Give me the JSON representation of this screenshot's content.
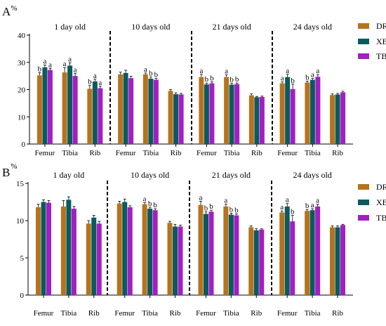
{
  "colors": {
    "DR": "#b5731d",
    "XB": "#0a5a5f",
    "TB": "#a21fc2"
  },
  "chart_data": [
    {
      "type": "bar",
      "panel": "A",
      "ylabel": "%",
      "ylim": [
        0,
        40
      ],
      "yticks": [
        0,
        10,
        20,
        30,
        40
      ],
      "legend_placement": "top-right",
      "legend": [
        "DR",
        "XB",
        "TB"
      ],
      "groups": [
        {
          "title": "1 day old",
          "categories": [
            "Femur",
            "Tibia",
            "Rib"
          ],
          "series": [
            {
              "name": "DR",
              "values": [
                25.2,
                26.3,
                20.3
              ],
              "errors": [
                1.0,
                1.8,
                1.2
              ],
              "letters": [
                "b",
                "a",
                "b"
              ]
            },
            {
              "name": "XB",
              "values": [
                28.2,
                28.8,
                23.0
              ],
              "errors": [
                0.8,
                1.0,
                0.8
              ],
              "letters": [
                "a",
                "a",
                "a"
              ]
            },
            {
              "name": "TB",
              "values": [
                27.2,
                25.0,
                20.5
              ],
              "errors": [
                0.6,
                1.0,
                0.7
              ],
              "letters": [
                "a",
                "a",
                "a"
              ]
            }
          ]
        },
        {
          "title": "10  days old",
          "categories": [
            "Femur",
            "Tibia",
            "Rib"
          ],
          "series": [
            {
              "name": "DR",
              "values": [
                25.6,
                25.6,
                19.5
              ],
              "errors": [
                0.8,
                0.5,
                0.5
              ],
              "letters": [
                "",
                "a",
                ""
              ]
            },
            {
              "name": "XB",
              "values": [
                26.1,
                24.0,
                18.3
              ],
              "errors": [
                1.0,
                0.6,
                0.5
              ],
              "letters": [
                "",
                "b",
                ""
              ]
            },
            {
              "name": "TB",
              "values": [
                24.2,
                23.6,
                18.2
              ],
              "errors": [
                0.7,
                0.5,
                0.4
              ],
              "letters": [
                "",
                "b",
                ""
              ]
            }
          ]
        },
        {
          "title": "21  days old",
          "categories": [
            "Femur",
            "Tibia",
            "Rib"
          ],
          "series": [
            {
              "name": "DR",
              "values": [
                24.6,
                24.6,
                17.9
              ],
              "errors": [
                1.0,
                0.8,
                0.5
              ],
              "letters": [
                "a",
                "a",
                ""
              ]
            },
            {
              "name": "XB",
              "values": [
                21.9,
                21.8,
                17.2
              ],
              "errors": [
                0.5,
                0.5,
                0.3
              ],
              "letters": [
                "b",
                "b",
                ""
              ]
            },
            {
              "name": "TB",
              "values": [
                22.3,
                22.0,
                17.3
              ],
              "errors": [
                0.5,
                0.4,
                0.3
              ],
              "letters": [
                "b",
                "b",
                ""
              ]
            }
          ]
        },
        {
          "title": "24  days old",
          "categories": [
            "Femur",
            "Tibia",
            "Rib"
          ],
          "series": [
            {
              "name": "DR",
              "values": [
                22.3,
                22.6,
                18.0
              ],
              "errors": [
                0.5,
                0.5,
                0.4
              ],
              "letters": [
                "a",
                "b",
                ""
              ]
            },
            {
              "name": "XB",
              "values": [
                24.6,
                23.6,
                18.2
              ],
              "errors": [
                1.0,
                0.5,
                0.4
              ],
              "letters": [
                "a",
                "a",
                ""
              ]
            },
            {
              "name": "TB",
              "values": [
                20.2,
                24.7,
                19.0
              ],
              "errors": [
                1.8,
                0.8,
                0.4
              ],
              "letters": [
                "b",
                "a",
                ""
              ]
            }
          ]
        }
      ]
    },
    {
      "type": "bar",
      "panel": "B",
      "ylabel": "%",
      "ylim": [
        0,
        15
      ],
      "yticks": [
        0,
        5,
        10,
        15
      ],
      "legend_placement": "top-right",
      "legend": [
        "DR",
        "XB",
        "TB"
      ],
      "groups": [
        {
          "title": "1 day old",
          "categories": [
            "Femur",
            "Tibia",
            "Rib"
          ],
          "series": [
            {
              "name": "DR",
              "values": [
                11.8,
                11.9,
                9.6
              ],
              "errors": [
                0.4,
                0.8,
                0.4
              ],
              "letters": [
                "",
                "",
                ""
              ]
            },
            {
              "name": "XB",
              "values": [
                12.5,
                12.8,
                10.4
              ],
              "errors": [
                0.3,
                0.4,
                0.3
              ],
              "letters": [
                "",
                "",
                ""
              ]
            },
            {
              "name": "TB",
              "values": [
                12.4,
                11.6,
                9.6
              ],
              "errors": [
                0.3,
                0.3,
                0.3
              ],
              "letters": [
                "",
                "",
                ""
              ]
            }
          ]
        },
        {
          "title": "10  days old",
          "categories": [
            "Femur",
            "Tibia",
            "Rib"
          ],
          "series": [
            {
              "name": "DR",
              "values": [
                12.3,
                12.2,
                9.7
              ],
              "errors": [
                0.3,
                0.2,
                0.2
              ],
              "letters": [
                "",
                "a",
                ""
              ]
            },
            {
              "name": "XB",
              "values": [
                12.5,
                11.6,
                9.2
              ],
              "errors": [
                0.4,
                0.2,
                0.3
              ],
              "letters": [
                "",
                "b",
                ""
              ]
            },
            {
              "name": "TB",
              "values": [
                11.8,
                11.4,
                9.2
              ],
              "errors": [
                0.2,
                0.2,
                0.2
              ],
              "letters": [
                "",
                "b",
                ""
              ]
            }
          ]
        },
        {
          "title": "21  days old",
          "categories": [
            "Femur",
            "Tibia",
            "Rib"
          ],
          "series": [
            {
              "name": "DR",
              "values": [
                12.1,
                11.9,
                9.1
              ],
              "errors": [
                0.5,
                0.3,
                0.2
              ],
              "letters": [
                "a",
                "a",
                ""
              ]
            },
            {
              "name": "XB",
              "values": [
                10.9,
                10.8,
                8.7
              ],
              "errors": [
                0.3,
                0.2,
                0.2
              ],
              "letters": [
                "b",
                "b",
                ""
              ]
            },
            {
              "name": "TB",
              "values": [
                11.2,
                10.7,
                8.8
              ],
              "errors": [
                0.2,
                0.2,
                0.1
              ],
              "letters": [
                "b",
                "b",
                ""
              ]
            }
          ]
        },
        {
          "title": "24  days old",
          "categories": [
            "Femur",
            "Tibia",
            "Rib"
          ],
          "series": [
            {
              "name": "DR",
              "values": [
                11.1,
                11.3,
                9.1
              ],
              "errors": [
                0.2,
                0.2,
                0.2
              ],
              "letters": [
                "a",
                "b",
                ""
              ]
            },
            {
              "name": "XB",
              "values": [
                11.9,
                11.4,
                9.1
              ],
              "errors": [
                0.4,
                0.2,
                0.2
              ],
              "letters": [
                "a",
                "a",
                ""
              ]
            },
            {
              "name": "TB",
              "values": [
                9.9,
                11.9,
                9.4
              ],
              "errors": [
                0.8,
                0.3,
                0.1
              ],
              "letters": [
                "b",
                "a",
                ""
              ]
            }
          ]
        }
      ]
    }
  ]
}
